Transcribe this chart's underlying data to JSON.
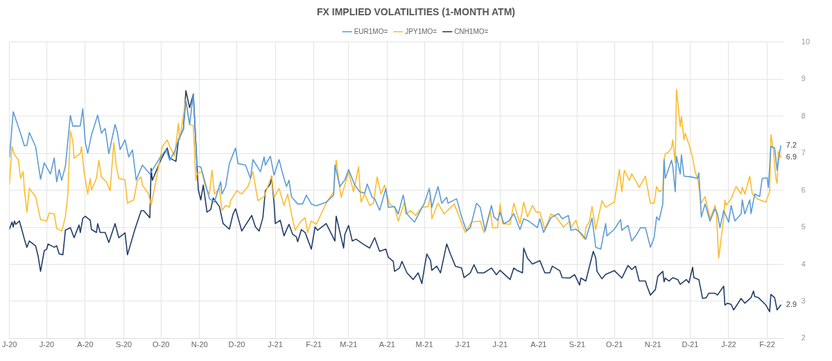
{
  "chart_data": {
    "type": "line",
    "title": "FX IMPLIED VOLATILITIES (1-MONTH ATM)",
    "legend": "top",
    "grid": true,
    "xlim": [
      "2020-06-01",
      "2022-02-14"
    ],
    "xticks": [
      {
        "value": "2020-06-01",
        "label": "J-20"
      },
      {
        "value": "2020-07-01",
        "label": "J-20"
      },
      {
        "value": "2020-08-01",
        "label": "A-20"
      },
      {
        "value": "2020-09-01",
        "label": "S-20"
      },
      {
        "value": "2020-10-01",
        "label": "O-20"
      },
      {
        "value": "2020-11-01",
        "label": "N-20"
      },
      {
        "value": "2020-12-01",
        "label": "D-20"
      },
      {
        "value": "2021-01-01",
        "label": "J-21"
      },
      {
        "value": "2021-02-01",
        "label": "F-21"
      },
      {
        "value": "2021-03-01",
        "label": "M-21"
      },
      {
        "value": "2021-04-01",
        "label": "A-21"
      },
      {
        "value": "2021-05-01",
        "label": "M-21"
      },
      {
        "value": "2021-06-01",
        "label": "J-21"
      },
      {
        "value": "2021-07-01",
        "label": "J-21"
      },
      {
        "value": "2021-08-01",
        "label": "A-21"
      },
      {
        "value": "2021-09-01",
        "label": "S-21"
      },
      {
        "value": "2021-10-01",
        "label": "O-21"
      },
      {
        "value": "2021-11-01",
        "label": "N-21"
      },
      {
        "value": "2021-12-01",
        "label": "D-21"
      },
      {
        "value": "2022-01-01",
        "label": "J-22"
      },
      {
        "value": "2022-02-01",
        "label": "F-22"
      }
    ],
    "ylim": [
      2,
      10
    ],
    "yticks": [
      2,
      3,
      4,
      5,
      6,
      7,
      8,
      9,
      10
    ],
    "annotations": [
      {
        "text": "7.2",
        "x": "2022-02-12",
        "y": 7.2
      },
      {
        "text": "6.9",
        "x": "2022-02-12",
        "y": 6.9
      },
      {
        "text": "2.9",
        "x": "2022-02-12",
        "y": 2.9
      }
    ],
    "series": [
      {
        "name": "EUR1MO=",
        "color": "#5b9bd5",
        "x": [
          "2020-06-01",
          "2020-06-04",
          "2020-06-09",
          "2020-06-13",
          "2020-06-15",
          "2020-06-17",
          "2020-06-22",
          "2020-06-26",
          "2020-06-29",
          "2020-07-04",
          "2020-07-07",
          "2020-07-09",
          "2020-07-11",
          "2020-07-13",
          "2020-07-16",
          "2020-07-20",
          "2020-07-22",
          "2020-07-28",
          "2020-07-30",
          "2020-08-01",
          "2020-08-03",
          "2020-08-06",
          "2020-08-11",
          "2020-08-14",
          "2020-08-17",
          "2020-08-20",
          "2020-08-25",
          "2020-08-27",
          "2020-08-29",
          "2020-09-02",
          "2020-09-05",
          "2020-09-08",
          "2020-09-11",
          "2020-09-16",
          "2020-09-22",
          "2020-09-30",
          "2020-10-05",
          "2020-10-08",
          "2020-10-12",
          "2020-10-15",
          "2020-10-19",
          "2020-10-21",
          "2020-10-24",
          "2020-10-27",
          "2020-10-30",
          "2020-11-02",
          "2020-11-05",
          "2020-11-09",
          "2020-11-13",
          "2020-11-18",
          "2020-11-19",
          "2020-11-22",
          "2020-11-25",
          "2020-11-30",
          "2020-12-02",
          "2020-12-08",
          "2020-12-12",
          "2020-12-14",
          "2020-12-20",
          "2020-12-23",
          "2020-12-24",
          "2020-12-28",
          "2020-12-31",
          "2021-01-04",
          "2021-01-07",
          "2021-01-10",
          "2021-01-12",
          "2021-01-14",
          "2021-01-19",
          "2021-01-23",
          "2021-01-26",
          "2021-01-30",
          "2021-02-03",
          "2021-02-11",
          "2021-02-17",
          "2021-02-18",
          "2021-02-22",
          "2021-02-26",
          "2021-03-01",
          "2021-03-06",
          "2021-03-10",
          "2021-03-14",
          "2021-03-16",
          "2021-03-20",
          "2021-03-22",
          "2021-03-26",
          "2021-03-31",
          "2021-04-02",
          "2021-04-07",
          "2021-04-10",
          "2021-04-14",
          "2021-04-17",
          "2021-04-23",
          "2021-05-01",
          "2021-05-05",
          "2021-05-07",
          "2021-05-12",
          "2021-05-15",
          "2021-05-19",
          "2021-05-20",
          "2021-05-27",
          "2021-05-31",
          "2021-06-04",
          "2021-06-07",
          "2021-06-12",
          "2021-06-15",
          "2021-06-19",
          "2021-06-24",
          "2021-06-26",
          "2021-06-29",
          "2021-07-01",
          "2021-07-04",
          "2021-07-08",
          "2021-07-12",
          "2021-07-17",
          "2021-07-20",
          "2021-07-24",
          "2021-07-31",
          "2021-08-02",
          "2021-08-05",
          "2021-08-11",
          "2021-08-17",
          "2021-08-20",
          "2021-08-25",
          "2021-08-27",
          "2021-08-31",
          "2021-09-05",
          "2021-09-08",
          "2021-09-13",
          "2021-09-16",
          "2021-09-20",
          "2021-09-24",
          "2021-09-25",
          "2021-10-01",
          "2021-10-06",
          "2021-10-07",
          "2021-10-12",
          "2021-10-15",
          "2021-10-19",
          "2021-10-22",
          "2021-10-26",
          "2021-10-30",
          "2021-11-02",
          "2021-11-04",
          "2021-11-06",
          "2021-11-09",
          "2021-11-10",
          "2021-11-11",
          "2021-11-16",
          "2021-11-17",
          "2021-11-19",
          "2021-11-20",
          "2021-11-23",
          "2021-11-24",
          "2021-11-26",
          "2021-12-02",
          "2021-12-07",
          "2021-12-08",
          "2021-12-10",
          "2021-12-13",
          "2021-12-17",
          "2021-12-21",
          "2021-12-23",
          "2021-12-25",
          "2021-12-28",
          "2022-01-01",
          "2022-01-03",
          "2022-01-06",
          "2022-01-11",
          "2022-01-12",
          "2022-01-14",
          "2022-01-18",
          "2022-01-19",
          "2022-01-22",
          "2022-01-26",
          "2022-01-28",
          "2022-02-01",
          "2022-02-02",
          "2022-02-04",
          "2022-02-07",
          "2022-02-09",
          "2022-02-11",
          "2022-02-12"
        ],
        "values": [
          6.9,
          8.12,
          7.63,
          7.2,
          7.21,
          7.56,
          7.18,
          6.3,
          6.74,
          6.44,
          6.87,
          6.23,
          6.56,
          6.27,
          6.65,
          8.02,
          7.73,
          7.74,
          8.2,
          7.3,
          7.0,
          7.49,
          8.03,
          7.54,
          7.67,
          6.99,
          7.78,
          7.54,
          7.1,
          7.36,
          6.9,
          7.09,
          6.28,
          6.68,
          6.44,
          6.87,
          7.1,
          6.81,
          7.05,
          7.36,
          7.65,
          8.41,
          7.78,
          8.6,
          6.65,
          6.63,
          6.27,
          5.77,
          5.68,
          6.23,
          5.9,
          6.1,
          6.72,
          7.14,
          6.72,
          6.68,
          6.32,
          6.83,
          6.5,
          6.9,
          6.68,
          6.92,
          6.41,
          6.83,
          6.44,
          6.1,
          6.27,
          5.83,
          5.63,
          5.63,
          5.87,
          5.63,
          5.58,
          5.68,
          5.87,
          6.68,
          6.1,
          6.28,
          6.56,
          6.14,
          5.96,
          5.92,
          6.17,
          5.81,
          5.77,
          5.46,
          6.05,
          5.54,
          5.56,
          5.36,
          5.87,
          5.36,
          5.14,
          5.65,
          6.05,
          5.54,
          6.1,
          5.65,
          5.81,
          5.65,
          5.77,
          5.28,
          4.9,
          4.99,
          5.65,
          5.54,
          4.9,
          5.59,
          5.28,
          5.19,
          5.41,
          5.1,
          5.17,
          5.37,
          4.94,
          5.23,
          5.17,
          4.99,
          5.23,
          4.86,
          5.26,
          5.37,
          5.23,
          5.32,
          4.92,
          4.95,
          4.81,
          4.68,
          5.25,
          4.46,
          4.41,
          5.1,
          4.77,
          4.95,
          5.21,
          4.92,
          5.05,
          4.63,
          4.81,
          4.99,
          4.99,
          4.46,
          4.72,
          5.28,
          5.19,
          5.63,
          6.83,
          6.32,
          6.81,
          6.65,
          5.96,
          6.92,
          6.44,
          6.96,
          6.38,
          6.36,
          6.32,
          6.47,
          5.28,
          5.63,
          5.17,
          5.5,
          5.36,
          4.99,
          5.45,
          5.14,
          5.59,
          5.17,
          5.36,
          5.74,
          5.36,
          5.74,
          5.37,
          5.9,
          5.83,
          6.32,
          6.34,
          6.08,
          7.19,
          7.14,
          6.54,
          7.0,
          7.2
        ]
      },
      {
        "name": "JPY1MO=",
        "color": "#fbbc2c",
        "x": [
          "2020-06-01",
          "2020-06-03",
          "2020-06-05",
          "2020-06-08",
          "2020-06-10",
          "2020-06-12",
          "2020-06-13",
          "2020-06-15",
          "2020-06-17",
          "2020-06-22",
          "2020-06-26",
          "2020-07-01",
          "2020-07-03",
          "2020-07-07",
          "2020-07-09",
          "2020-07-13",
          "2020-07-16",
          "2020-07-18",
          "2020-07-20",
          "2020-07-22",
          "2020-07-23",
          "2020-07-28",
          "2020-07-29",
          "2020-07-31",
          "2020-08-03",
          "2020-08-05",
          "2020-08-06",
          "2020-08-10",
          "2020-08-12",
          "2020-08-14",
          "2020-08-18",
          "2020-08-21",
          "2020-08-24",
          "2020-08-26",
          "2020-08-28",
          "2020-09-02",
          "2020-09-04",
          "2020-09-09",
          "2020-09-12",
          "2020-09-15",
          "2020-09-16",
          "2020-09-21",
          "2020-09-23",
          "2020-09-27",
          "2020-10-02",
          "2020-10-06",
          "2020-10-08",
          "2020-10-12",
          "2020-10-15",
          "2020-10-16",
          "2020-10-21",
          "2020-10-24",
          "2020-10-27",
          "2020-10-29",
          "2020-10-30",
          "2020-11-03",
          "2020-11-05",
          "2020-11-07",
          "2020-11-09",
          "2020-11-11",
          "2020-11-13",
          "2020-11-17",
          "2020-11-19",
          "2020-11-22",
          "2020-11-25",
          "2020-11-26",
          "2020-12-01",
          "2020-12-05",
          "2020-12-10",
          "2020-12-14",
          "2020-12-18",
          "2020-12-23",
          "2020-12-29",
          "2020-12-31",
          "2021-01-04",
          "2021-01-08",
          "2021-01-11",
          "2021-01-14",
          "2021-01-17",
          "2021-01-21",
          "2021-01-25",
          "2021-01-27",
          "2021-01-30",
          "2021-02-03",
          "2021-02-11",
          "2021-02-17",
          "2021-02-19",
          "2021-02-23",
          "2021-02-26",
          "2021-03-01",
          "2021-03-05",
          "2021-03-09",
          "2021-03-11",
          "2021-03-14",
          "2021-03-18",
          "2021-03-21",
          "2021-03-24",
          "2021-03-27",
          "2021-03-30",
          "2021-04-03",
          "2021-04-07",
          "2021-04-10",
          "2021-04-15",
          "2021-04-16",
          "2021-04-20",
          "2021-04-24",
          "2021-04-29",
          "2021-05-04",
          "2021-05-06",
          "2021-05-07",
          "2021-05-12",
          "2021-05-17",
          "2021-05-21",
          "2021-05-25",
          "2021-06-03",
          "2021-06-08",
          "2021-06-15",
          "2021-06-18",
          "2021-06-23",
          "2021-06-25",
          "2021-06-29",
          "2021-07-01",
          "2021-07-03",
          "2021-07-09",
          "2021-07-12",
          "2021-07-17",
          "2021-07-20",
          "2021-07-23",
          "2021-07-27",
          "2021-07-30",
          "2021-08-02",
          "2021-08-06",
          "2021-08-11",
          "2021-08-15",
          "2021-08-21",
          "2021-08-26",
          "2021-08-27",
          "2021-08-31",
          "2021-09-03",
          "2021-09-07",
          "2021-09-08",
          "2021-09-11",
          "2021-09-13",
          "2021-09-16",
          "2021-09-21",
          "2021-09-24",
          "2021-10-01",
          "2021-10-05",
          "2021-10-07",
          "2021-10-09",
          "2021-10-13",
          "2021-10-15",
          "2021-10-21",
          "2021-10-26",
          "2021-10-30",
          "2021-11-02",
          "2021-11-04",
          "2021-11-06",
          "2021-11-09",
          "2021-11-10",
          "2021-11-11",
          "2021-11-13",
          "2021-11-16",
          "2021-11-17",
          "2021-11-19",
          "2021-11-20",
          "2021-11-23",
          "2021-11-24",
          "2021-11-26",
          "2021-11-27",
          "2021-12-01",
          "2021-12-03",
          "2021-12-05",
          "2021-12-07",
          "2021-12-10",
          "2021-12-13",
          "2021-12-17",
          "2021-12-21",
          "2021-12-22",
          "2021-12-24",
          "2021-12-28",
          "2021-12-29",
          "2021-12-30",
          "2022-01-03",
          "2022-01-07",
          "2022-01-11",
          "2022-01-12",
          "2022-01-14",
          "2022-01-18",
          "2022-01-20",
          "2022-01-24",
          "2022-01-31",
          "2022-02-03",
          "2022-02-04",
          "2022-02-06",
          "2022-02-08",
          "2022-02-09",
          "2022-02-10",
          "2022-02-12"
        ],
        "values": [
          6.18,
          7.18,
          6.96,
          6.83,
          6.32,
          6.5,
          6.01,
          5.41,
          6.05,
          5.83,
          5.21,
          5.17,
          5.39,
          5.36,
          4.97,
          4.9,
          5.28,
          5.9,
          7.6,
          7.32,
          6.87,
          6.99,
          7.18,
          6.5,
          5.9,
          6.32,
          6.01,
          6.32,
          6.81,
          6.36,
          6.23,
          5.99,
          7.29,
          6.65,
          6.32,
          6.28,
          5.65,
          5.74,
          6.27,
          6.36,
          6.14,
          5.9,
          5.59,
          6.27,
          7.18,
          7.36,
          7.18,
          6.92,
          7.81,
          7.36,
          8.45,
          7.78,
          7.74,
          6.27,
          6.45,
          6.5,
          6.19,
          6.01,
          5.9,
          6.54,
          5.9,
          6.05,
          5.46,
          5.59,
          5.54,
          5.72,
          5.99,
          5.9,
          6.1,
          6.5,
          5.72,
          5.83,
          6.38,
          5.81,
          6.05,
          5.59,
          5.9,
          5.36,
          4.92,
          5.14,
          5.26,
          4.86,
          5.17,
          5.08,
          5.65,
          5.96,
          6.81,
          5.81,
          6.14,
          6.5,
          5.96,
          6.63,
          5.68,
          5.9,
          5.59,
          5.65,
          6.36,
          5.9,
          6.14,
          5.63,
          5.54,
          5.17,
          5.68,
          5.36,
          5.45,
          5.32,
          5.54,
          5.56,
          5.87,
          5.23,
          5.65,
          5.36,
          5.5,
          5.63,
          4.86,
          5.14,
          5.17,
          4.86,
          5.45,
          4.99,
          4.99,
          5.63,
          5.1,
          5.08,
          5.65,
          5.1,
          5.68,
          5.28,
          5.59,
          5.41,
          5.41,
          4.95,
          5.36,
          5.28,
          5.01,
          5.17,
          4.99,
          5.19,
          4.86,
          4.68,
          4.99,
          5.17,
          5.56,
          4.94,
          5.72,
          5.54,
          5.68,
          6.56,
          5.96,
          6.54,
          6.27,
          6.45,
          6.08,
          6.38,
          5.65,
          5.65,
          6.1,
          5.96,
          6.01,
          6.83,
          6.99,
          7.01,
          7.14,
          7.36,
          6.74,
          8.72,
          7.72,
          8.0,
          7.36,
          7.54,
          7.14,
          6.87,
          6.5,
          6.32,
          5.65,
          5.83,
          5.23,
          5.59,
          5.45,
          4.17,
          5.23,
          5.74,
          5.59,
          5.77,
          6.1,
          5.9,
          6.08,
          5.9,
          6.38,
          5.9,
          5.77,
          5.68,
          5.96,
          7.5,
          7.1,
          6.32,
          6.19,
          7.05,
          6.9
        ]
      },
      {
        "name": "CNH1MO=",
        "color": "#1f3b66",
        "x": [
          "2020-06-01",
          "2020-06-03",
          "2020-06-04",
          "2020-06-05",
          "2020-06-06",
          "2020-06-09",
          "2020-06-13",
          "2020-06-15",
          "2020-06-17",
          "2020-06-22",
          "2020-06-24",
          "2020-06-26",
          "2020-06-29",
          "2020-07-01",
          "2020-07-02",
          "2020-07-07",
          "2020-07-09",
          "2020-07-11",
          "2020-07-14",
          "2020-07-16",
          "2020-07-20",
          "2020-07-23",
          "2020-07-27",
          "2020-07-28",
          "2020-07-30",
          "2020-08-01",
          "2020-08-05",
          "2020-08-06",
          "2020-08-10",
          "2020-08-11",
          "2020-08-13",
          "2020-08-17",
          "2020-08-20",
          "2020-08-25",
          "2020-08-28",
          "2020-09-02",
          "2020-09-04",
          "2020-09-10",
          "2020-09-15",
          "2020-09-17",
          "2020-09-22",
          "2020-09-23",
          "2020-09-24",
          "2020-10-01",
          "2020-10-06",
          "2020-10-08",
          "2020-10-13",
          "2020-10-15",
          "2020-10-19",
          "2020-10-21",
          "2020-10-24",
          "2020-10-27",
          "2020-10-30",
          "2020-10-31",
          "2020-11-02",
          "2020-11-04",
          "2020-11-07",
          "2020-11-10",
          "2020-11-12",
          "2020-11-17",
          "2020-11-20",
          "2020-11-25",
          "2020-11-28",
          "2020-11-30",
          "2020-12-05",
          "2020-12-13",
          "2020-12-16",
          "2020-12-19",
          "2020-12-22",
          "2020-12-24",
          "2020-12-28",
          "2020-12-29",
          "2020-12-31",
          "2021-01-01",
          "2021-01-05",
          "2021-01-08",
          "2021-01-12",
          "2021-01-15",
          "2021-01-18",
          "2021-01-19",
          "2021-01-22",
          "2021-01-25",
          "2021-01-27",
          "2021-01-30",
          "2021-02-02",
          "2021-02-04",
          "2021-02-11",
          "2021-02-18",
          "2021-02-19",
          "2021-02-25",
          "2021-02-26",
          "2021-03-01",
          "2021-03-04",
          "2021-03-07",
          "2021-03-13",
          "2021-03-18",
          "2021-03-22",
          "2021-03-26",
          "2021-03-31",
          "2021-04-02",
          "2021-04-06",
          "2021-04-07",
          "2021-04-11",
          "2021-04-13",
          "2021-04-17",
          "2021-04-22",
          "2021-04-26",
          "2021-04-29",
          "2021-05-01",
          "2021-05-03",
          "2021-05-06",
          "2021-05-07",
          "2021-05-11",
          "2021-05-14",
          "2021-05-19",
          "2021-05-22",
          "2021-05-26",
          "2021-05-31",
          "2021-06-02",
          "2021-06-07",
          "2021-06-10",
          "2021-06-13",
          "2021-06-18",
          "2021-06-24",
          "2021-06-28",
          "2021-07-01",
          "2021-07-09",
          "2021-07-12",
          "2021-07-15",
          "2021-07-19",
          "2021-07-20",
          "2021-07-23",
          "2021-07-27",
          "2021-08-02",
          "2021-08-06",
          "2021-08-10",
          "2021-08-12",
          "2021-08-18",
          "2021-08-20",
          "2021-08-26",
          "2021-08-30",
          "2021-09-03",
          "2021-09-04",
          "2021-09-08",
          "2021-09-14",
          "2021-09-16",
          "2021-09-17",
          "2021-09-21",
          "2021-09-24",
          "2021-10-01",
          "2021-10-07",
          "2021-10-12",
          "2021-10-15",
          "2021-10-18",
          "2021-10-21",
          "2021-10-26",
          "2021-10-27",
          "2021-10-30",
          "2021-11-03",
          "2021-11-05",
          "2021-11-09",
          "2021-11-10",
          "2021-11-11",
          "2021-11-14",
          "2021-11-17",
          "2021-11-21",
          "2021-11-23",
          "2021-11-28",
          "2021-11-30",
          "2021-12-03",
          "2021-12-04",
          "2021-12-08",
          "2021-12-11",
          "2021-12-14",
          "2021-12-16",
          "2021-12-21",
          "2021-12-23",
          "2021-12-28",
          "2021-12-29",
          "2021-12-31",
          "2022-01-03",
          "2022-01-05",
          "2022-01-08",
          "2022-01-11",
          "2022-01-14",
          "2022-01-19",
          "2022-01-21",
          "2022-01-22",
          "2022-01-25",
          "2022-01-31",
          "2022-02-03",
          "2022-02-04",
          "2022-02-07",
          "2022-02-09",
          "2022-02-12"
        ],
        "values": [
          4.95,
          5.14,
          5.01,
          5.17,
          5.08,
          5.17,
          4.68,
          4.46,
          4.63,
          4.5,
          4.23,
          3.81,
          4.37,
          4.41,
          4.55,
          4.46,
          4.5,
          4.28,
          4.26,
          4.92,
          4.99,
          4.72,
          5.06,
          4.86,
          5.24,
          5.3,
          5.19,
          4.94,
          4.86,
          5.1,
          4.86,
          4.86,
          4.59,
          5.1,
          4.72,
          4.85,
          4.26,
          4.95,
          5.45,
          5.45,
          5.26,
          6.59,
          6.27,
          6.83,
          7.14,
          6.87,
          6.78,
          7.36,
          7.65,
          8.69,
          8.23,
          8.6,
          6.63,
          6.01,
          5.74,
          6.14,
          5.41,
          5.48,
          5.79,
          5.56,
          5.1,
          4.95,
          5.36,
          5.5,
          4.9,
          5.32,
          5.01,
          4.9,
          5.26,
          5.99,
          6.17,
          6.38,
          5.65,
          5.1,
          5.19,
          4.77,
          5.08,
          4.81,
          4.74,
          4.61,
          4.94,
          4.86,
          4.68,
          4.41,
          5.01,
          4.92,
          5.1,
          4.63,
          5.3,
          4.44,
          4.81,
          5.05,
          4.63,
          4.68,
          4.54,
          4.44,
          4.72,
          4.35,
          4.41,
          4.19,
          4.08,
          3.81,
          3.9,
          4.08,
          3.77,
          3.59,
          3.77,
          3.48,
          3.9,
          4.28,
          4.1,
          3.84,
          3.95,
          3.77,
          4.55,
          4.28,
          3.95,
          3.9,
          3.64,
          3.77,
          3.99,
          3.77,
          3.77,
          3.9,
          3.72,
          3.84,
          3.59,
          3.9,
          3.83,
          3.77,
          4.44,
          4.17,
          4.01,
          4.1,
          3.77,
          3.77,
          3.95,
          3.83,
          3.64,
          3.63,
          3.72,
          3.44,
          3.63,
          3.55,
          4.35,
          4.17,
          3.81,
          3.61,
          3.73,
          3.83,
          3.63,
          3.97,
          3.86,
          3.95,
          3.55,
          3.55,
          3.44,
          3.17,
          3.32,
          3.68,
          3.81,
          3.53,
          3.63,
          3.55,
          3.64,
          3.59,
          3.46,
          3.59,
          3.5,
          3.92,
          3.64,
          3.59,
          3.08,
          3.1,
          3.22,
          3.22,
          3.17,
          3.41,
          2.9,
          2.95,
          2.92,
          2.77,
          2.92,
          3.08,
          2.95,
          3.1,
          3.28,
          3.13,
          3.1,
          2.9,
          2.72,
          3.19,
          3.1,
          2.77,
          2.9
        ]
      }
    ]
  }
}
